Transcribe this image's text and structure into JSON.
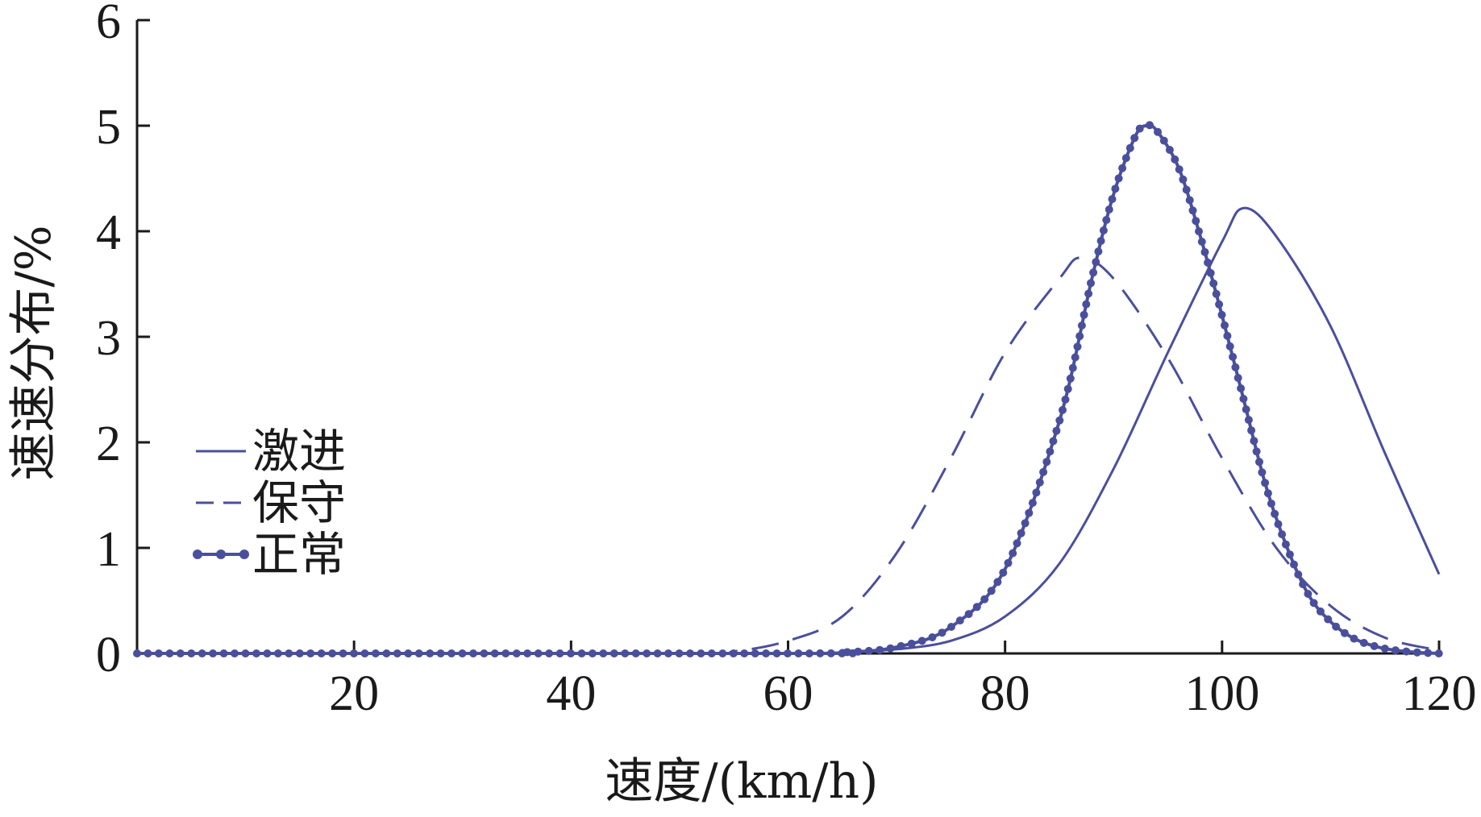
{
  "chart_data": {
    "type": "line",
    "title": "",
    "xlabel": "速度/(km/h)",
    "ylabel": "速速分布/%",
    "xlim": [
      0,
      120
    ],
    "ylim": [
      0,
      6
    ],
    "xticks": [
      20,
      40,
      60,
      80,
      100,
      120
    ],
    "yticks": [
      0,
      1,
      2,
      3,
      4,
      5,
      6
    ],
    "grid": false,
    "legend_position": "left-middle",
    "line_color": "#4a4f9c",
    "series": [
      {
        "name": "激进",
        "style": "solid",
        "x": [
          0,
          50,
          55,
          60,
          65,
          70,
          75,
          80,
          85,
          90,
          95,
          100,
          102,
          105,
          110,
          115,
          120
        ],
        "y": [
          0,
          0,
          0,
          0,
          0.01,
          0.04,
          0.12,
          0.35,
          0.85,
          1.75,
          2.85,
          3.9,
          4.22,
          3.95,
          3.1,
          1.9,
          0.75
        ]
      },
      {
        "name": "保守",
        "style": "dashed",
        "x": [
          0,
          50,
          55,
          60,
          65,
          70,
          75,
          80,
          85,
          87,
          90,
          95,
          100,
          105,
          110,
          115,
          120
        ],
        "y": [
          0,
          0,
          0.02,
          0.12,
          0.35,
          0.95,
          1.85,
          2.85,
          3.55,
          3.75,
          3.55,
          2.8,
          1.85,
          1.0,
          0.45,
          0.15,
          0.03
        ]
      },
      {
        "name": "正常",
        "style": "solid-dotted",
        "x": [
          0,
          60,
          65,
          70,
          75,
          80,
          85,
          88,
          90,
          92,
          93,
          94,
          96,
          98,
          100,
          102,
          104,
          106,
          108,
          110,
          112,
          114,
          116,
          118,
          120
        ],
        "y": [
          0,
          0,
          0.01,
          0.06,
          0.25,
          0.8,
          2.2,
          3.55,
          4.35,
          4.9,
          5.0,
          4.95,
          4.6,
          3.95,
          3.2,
          2.4,
          1.6,
          1.0,
          0.55,
          0.3,
          0.15,
          0.07,
          0.03,
          0.01,
          0
        ]
      }
    ]
  }
}
